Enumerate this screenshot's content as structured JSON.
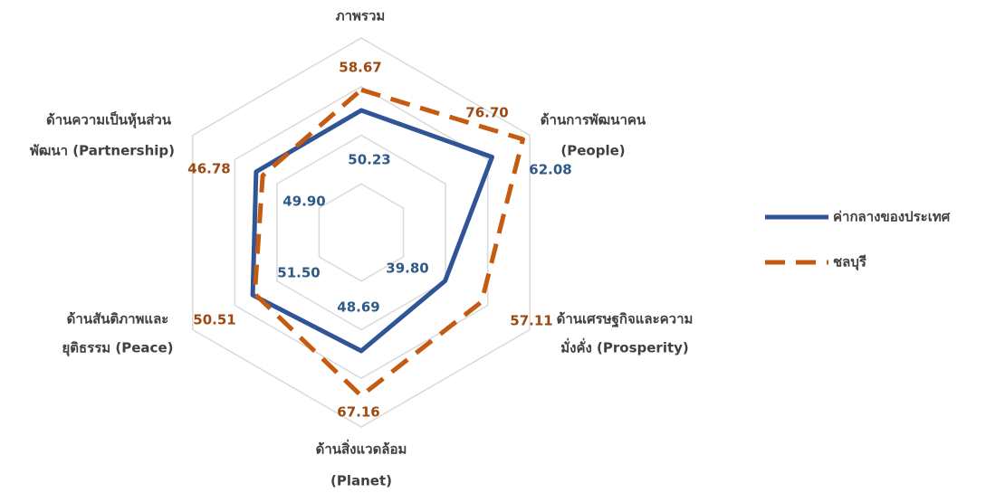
{
  "chart_data": {
    "type": "radar",
    "categories": [
      [
        "ภาพรวม"
      ],
      [
        "ด้านการพัฒนาคน",
        "(People)"
      ],
      [
        "ด้านเศรษฐกิจและความ",
        "มั่งคั่ง (Prosperity)"
      ],
      [
        "ด้านสิ่งแวดล้อม",
        "(Planet)"
      ],
      [
        "ด้านสันติภาพและ",
        "ยุติธรรม (Peace)"
      ],
      [
        "ด้านความเป็นหุ้นส่วน",
        "พัฒนา (Partnership)"
      ]
    ],
    "series": [
      {
        "name": "ค่ากลางของประเทศ",
        "color": "#2f5597",
        "line_style": "solid",
        "values": [
          50.23,
          62.08,
          39.8,
          48.69,
          51.5,
          49.9
        ],
        "value_labels": [
          "50.23",
          "62.08",
          "39.80",
          "48.69",
          "51.50",
          "49.90"
        ]
      },
      {
        "name": "ชลบุรี",
        "color": "#c55a11",
        "line_style": "dashed",
        "values": [
          58.67,
          76.7,
          57.11,
          67.16,
          50.51,
          46.78
        ],
        "value_labels": [
          "58.67",
          "76.70",
          "57.11",
          "67.16",
          "50.51",
          "46.78"
        ]
      }
    ],
    "ylim": [
      0,
      80
    ],
    "yticks": [
      0,
      20,
      40,
      60,
      80
    ],
    "grid": true,
    "legend": "right"
  }
}
